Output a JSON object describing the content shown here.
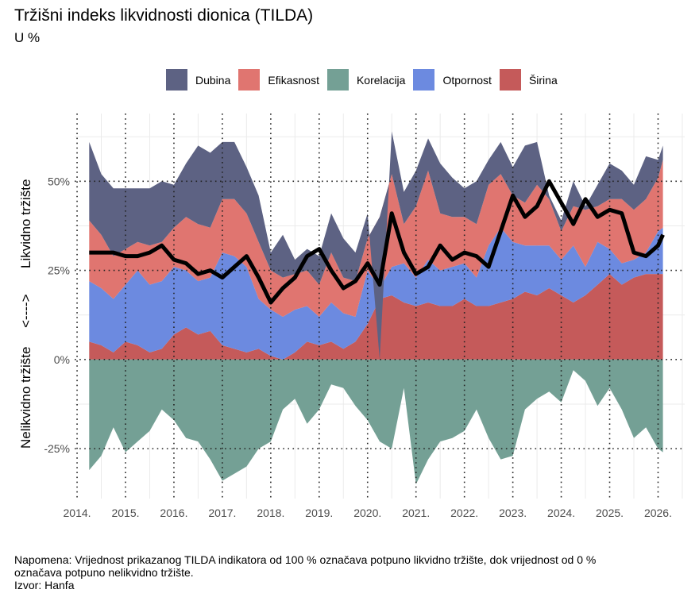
{
  "title": "Tržišni indeks likvidnosti dionica (TILDA)",
  "subtitle": "U %",
  "note": {
    "line1": "Napomena: Vrijednost prikazanog TILDA indikatora od 100 % označava potpuno likvidno tržište, dok vrijednost od 0 %",
    "line2": "označava potpuno nelikvidno tržište.",
    "source": "Izvor: Hanfa"
  },
  "chart_data": {
    "type": "area",
    "stacked": true,
    "title": "Tržišni indeks likvidnosti dionica (TILDA)",
    "subtitle": "U %",
    "ylabel": "Nelikvidno tržište   <---->   Likvidno tržište",
    "xlabel": "",
    "ylim": [
      -39,
      69
    ],
    "xlim": [
      2013.95,
      2026.55
    ],
    "grid": true,
    "legend_position": "top",
    "x_ticks": [
      "2014.",
      "2015.",
      "2016.",
      "2017.",
      "2018.",
      "2019.",
      "2020.",
      "2021.",
      "2022.",
      "2023.",
      "2024.",
      "2025.",
      "2026."
    ],
    "x_tick_values": [
      2014,
      2015,
      2016,
      2017,
      2018,
      2019,
      2020,
      2021,
      2022,
      2023,
      2024,
      2025,
      2026
    ],
    "y_ticks": [
      "-25%",
      "0%",
      "25%",
      "50%"
    ],
    "y_tick_values": [
      -25,
      0,
      25,
      50
    ],
    "x": [
      2014.25,
      2014.5,
      2014.75,
      2015.0,
      2015.25,
      2015.5,
      2015.75,
      2016.0,
      2016.25,
      2016.5,
      2016.75,
      2017.0,
      2017.25,
      2017.5,
      2017.75,
      2018.0,
      2018.25,
      2018.5,
      2018.75,
      2019.0,
      2019.25,
      2019.5,
      2019.75,
      2020.0,
      2020.25,
      2020.5,
      2020.75,
      2021.0,
      2021.25,
      2021.5,
      2021.75,
      2022.0,
      2022.25,
      2022.5,
      2022.75,
      2023.0,
      2023.25,
      2023.5,
      2023.75,
      2024.0,
      2024.25,
      2024.5,
      2024.75,
      2025.0,
      2025.25,
      2025.5,
      2025.75,
      2026.0,
      2026.1
    ],
    "series": [
      {
        "name": "Širina",
        "color": "#c55a5a",
        "values": [
          5,
          4,
          2,
          5,
          4,
          2,
          3,
          7,
          9,
          7,
          8,
          4,
          3,
          2,
          3,
          1,
          0,
          2,
          5,
          4,
          5,
          3,
          5,
          10,
          17,
          18,
          16,
          15,
          16,
          15,
          15,
          17,
          15,
          15,
          16,
          17,
          19,
          18,
          20,
          18,
          16,
          18,
          21,
          24,
          21,
          23,
          24,
          24,
          24
        ]
      },
      {
        "name": "Otpornost",
        "color": "#6c8ae0",
        "values": [
          17,
          16,
          15,
          16,
          21,
          19,
          19,
          19,
          16,
          15,
          15,
          26,
          26,
          24,
          14,
          13,
          12,
          12,
          10,
          8,
          11,
          10,
          7,
          15,
          3,
          8,
          11,
          8,
          12,
          10,
          11,
          10,
          8,
          17,
          21,
          16,
          13,
          14,
          12,
          10,
          16,
          8,
          12,
          7,
          6,
          5,
          6,
          12,
          13
        ]
      },
      {
        "name": "Efikasnost",
        "color": "#e07570",
        "values": [
          17,
          15,
          12,
          10,
          8,
          11,
          11,
          11,
          15,
          16,
          14,
          15,
          16,
          15,
          16,
          11,
          11,
          10,
          10,
          9,
          14,
          10,
          10,
          9,
          20,
          26,
          11,
          20,
          25,
          16,
          14,
          13,
          15,
          17,
          15,
          13,
          12,
          17,
          13,
          8,
          11,
          16,
          10,
          14,
          18,
          14,
          15,
          15,
          19
        ]
      },
      {
        "name": "Dubina",
        "color": "#5d6283",
        "values": [
          22,
          17,
          19,
          17,
          15,
          16,
          17,
          12,
          15,
          22,
          21,
          16,
          16,
          13,
          13,
          5,
          12,
          4,
          6,
          8,
          11,
          11,
          8,
          7,
          -40,
          12,
          9,
          10,
          9,
          14,
          11,
          8,
          12,
          7,
          9,
          8,
          16,
          12,
          1,
          3,
          7,
          1,
          6,
          10,
          8,
          7,
          12,
          5,
          4
        ]
      },
      {
        "name": "Korelacija",
        "color": "#74a095",
        "values": [
          -31,
          -27,
          -19,
          -26,
          -23,
          -20,
          -14,
          -17,
          -22,
          -23,
          -28,
          -34,
          -32,
          -30,
          -25,
          -23,
          -14,
          -11,
          -18,
          -14,
          -7,
          -8,
          -13,
          -17,
          -23,
          -25,
          -8,
          -35,
          -28,
          -23,
          -22,
          -20,
          -14,
          -22,
          -28,
          -27,
          -14,
          -11,
          -9,
          -12,
          -3,
          -6,
          -13,
          -8,
          -14,
          -22,
          -19,
          -25,
          -26
        ]
      }
    ],
    "line": {
      "name": "TILDA",
      "color": "#000000",
      "values": [
        30,
        30,
        30,
        29,
        29,
        30,
        32,
        28,
        27,
        24,
        25,
        23,
        26,
        29,
        23,
        16,
        20,
        23,
        29,
        31,
        25,
        20,
        22,
        27,
        21,
        41,
        30,
        24,
        26,
        32,
        28,
        30,
        29,
        26,
        36,
        46,
        40,
        43,
        50,
        44,
        38,
        45,
        40,
        42,
        41,
        30,
        29,
        32,
        35
      ]
    }
  }
}
